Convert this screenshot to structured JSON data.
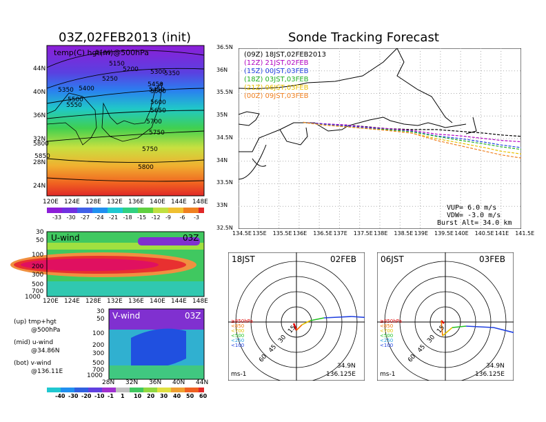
{
  "titles": {
    "left": "03Z,02FEB2013 (init)",
    "right": "Sonde Tracking Forecast"
  },
  "panel_top": {
    "label": "temp(C) hgt(m)@500hPa",
    "lon_ticks": [
      "120E",
      "124E",
      "128E",
      "132E",
      "136E",
      "140E",
      "144E",
      "148E"
    ],
    "lat_ticks": [
      "44N",
      "40N",
      "36N",
      "32N",
      "28N",
      "24N"
    ],
    "contours": [
      "5100",
      "5150",
      "5200",
      "5250",
      "5300",
      "5350",
      "5350",
      "5400",
      "5450",
      "5450",
      "5500",
      "5500",
      "5550",
      "5600",
      "5650",
      "5700",
      "5750",
      "5750",
      "5800",
      "5800",
      "5850"
    ],
    "colorbar": [
      "-33",
      "-30",
      "-27",
      "-24",
      "-21",
      "-18",
      "-15",
      "-12",
      "-9",
      "-6",
      "-3"
    ]
  },
  "panel_uwind": {
    "label": "U-wind",
    "time": "03Z",
    "p_ticks": [
      "30",
      "50",
      "100",
      "200",
      "300",
      "500",
      "700",
      "1000"
    ],
    "lon_ticks": [
      "120E",
      "124E",
      "128E",
      "132E",
      "136E",
      "140E",
      "144E",
      "148E"
    ]
  },
  "panel_vwind": {
    "label": "V-wind",
    "time": "03Z",
    "p_ticks": [
      "30",
      "50",
      "100",
      "200",
      "300",
      "500",
      "700",
      "1000"
    ],
    "lat_ticks": [
      "28N",
      "32N",
      "36N",
      "40N",
      "44N"
    ],
    "colorbar": [
      "-40",
      "-30",
      "-20",
      "-10",
      "-1",
      "1",
      "10",
      "20",
      "30",
      "40",
      "50",
      "60"
    ]
  },
  "legend_notes": [
    {
      "line1": "(up) tmp+hgt",
      "line2": "@500hPa"
    },
    {
      "line1": "(mid) u-wind",
      "line2": "@34.86N"
    },
    {
      "line1": "(bot) v-wind",
      "line2": "@136.11E"
    }
  ],
  "track_map": {
    "lat_ticks": [
      "36.5N",
      "36N",
      "35.5N",
      "35N",
      "34.5N",
      "34N",
      "33.5N",
      "33N",
      "32.5N"
    ],
    "lon_ticks": [
      "134.5E",
      "135E",
      "135.5E",
      "136E",
      "136.5E",
      "137E",
      "137.5E",
      "138E",
      "138.5E",
      "139E",
      "139.5E",
      "140E",
      "140.5E",
      "141E",
      "141.5E"
    ],
    "vup": "VUP=  6.0  m/s",
    "vdw": "VDW= -3.0  m/s",
    "burst": "Burst Alt= 34.0  km"
  },
  "hodographs": [
    {
      "time": "18JST",
      "date": "02FEB",
      "lat": "34.9N",
      "lon": "136.125E",
      "unit": "ms-1"
    },
    {
      "time": "06JST",
      "date": "03FEB",
      "lat": "34.9N",
      "lon": "136.125E",
      "unit": "ms-1"
    }
  ],
  "hodo_rings": [
    "15",
    "30",
    "45",
    "60"
  ],
  "hodo_legend": [
    {
      "label": "≥850hPa",
      "color": "#e00000"
    },
    {
      "label": "<850",
      "color": "#f07000"
    },
    {
      "label": "<700",
      "color": "#e0c000"
    },
    {
      "label": "<500",
      "color": "#20c020"
    },
    {
      "label": "<250",
      "color": "#20a0e0"
    },
    {
      "label": "<100",
      "color": "#2040e0"
    }
  ],
  "chart_data": {
    "type": "line",
    "title": "Sonde Tracking Forecast",
    "xlim": [
      134.5,
      141.5
    ],
    "ylim": [
      32.5,
      36.5
    ],
    "series": [
      {
        "name": "(09Z)  18JST,02FEB2013",
        "color": "#000000",
        "points": [
          [
            136.1,
            34.86
          ],
          [
            136.6,
            34.82
          ],
          [
            137.2,
            34.8
          ],
          [
            137.7,
            34.76
          ],
          [
            138.2,
            34.72
          ],
          [
            138.8,
            34.7
          ],
          [
            139.4,
            34.7
          ],
          [
            140.0,
            34.66
          ],
          [
            140.6,
            34.62
          ],
          [
            141.0,
            34.58
          ],
          [
            141.5,
            34.55
          ]
        ]
      },
      {
        "name": "(12Z)  21JST,02FEB",
        "color": "#b000c0",
        "points": [
          [
            136.1,
            34.86
          ],
          [
            136.6,
            34.83
          ],
          [
            137.2,
            34.8
          ],
          [
            137.7,
            34.75
          ],
          [
            138.2,
            34.72
          ],
          [
            138.8,
            34.68
          ],
          [
            139.4,
            34.6
          ],
          [
            140.0,
            34.56
          ],
          [
            140.6,
            34.5
          ],
          [
            141.0,
            34.46
          ],
          [
            141.5,
            34.43
          ]
        ]
      },
      {
        "name": "(15Z)  00JST,03FEB",
        "color": "#2040e0",
        "points": [
          [
            136.1,
            34.86
          ],
          [
            136.6,
            34.82
          ],
          [
            137.2,
            34.78
          ],
          [
            137.7,
            34.74
          ],
          [
            138.2,
            34.7
          ],
          [
            138.8,
            34.66
          ],
          [
            139.4,
            34.56
          ],
          [
            140.0,
            34.5
          ],
          [
            140.6,
            34.42
          ],
          [
            141.0,
            34.36
          ],
          [
            141.5,
            34.3
          ]
        ]
      },
      {
        "name": "(18Z)  03JST,03FEB",
        "color": "#20b020",
        "points": [
          [
            136.1,
            34.86
          ],
          [
            136.6,
            34.8
          ],
          [
            137.2,
            34.76
          ],
          [
            137.7,
            34.72
          ],
          [
            138.2,
            34.7
          ],
          [
            138.8,
            34.65
          ],
          [
            139.4,
            34.55
          ],
          [
            140.0,
            34.46
          ],
          [
            140.6,
            34.38
          ],
          [
            141.0,
            34.32
          ],
          [
            141.5,
            34.26
          ]
        ]
      },
      {
        "name": "(21Z)  06JST,03FEB",
        "color": "#e8c000",
        "points": [
          [
            136.1,
            34.86
          ],
          [
            136.6,
            34.8
          ],
          [
            137.2,
            34.76
          ],
          [
            137.7,
            34.72
          ],
          [
            138.2,
            34.68
          ],
          [
            138.8,
            34.62
          ],
          [
            139.4,
            34.5
          ],
          [
            140.0,
            34.4
          ],
          [
            140.6,
            34.3
          ],
          [
            141.0,
            34.22
          ],
          [
            141.5,
            34.16
          ]
        ]
      },
      {
        "name": "(00Z)  09JST,03FEB",
        "color": "#f08020",
        "points": [
          [
            136.1,
            34.86
          ],
          [
            136.6,
            34.8
          ],
          [
            137.2,
            34.76
          ],
          [
            137.7,
            34.72
          ],
          [
            138.2,
            34.68
          ],
          [
            138.8,
            34.62
          ],
          [
            139.4,
            34.46
          ],
          [
            140.0,
            34.34
          ],
          [
            140.6,
            34.22
          ],
          [
            141.0,
            34.14
          ],
          [
            141.5,
            34.07
          ]
        ]
      }
    ]
  }
}
